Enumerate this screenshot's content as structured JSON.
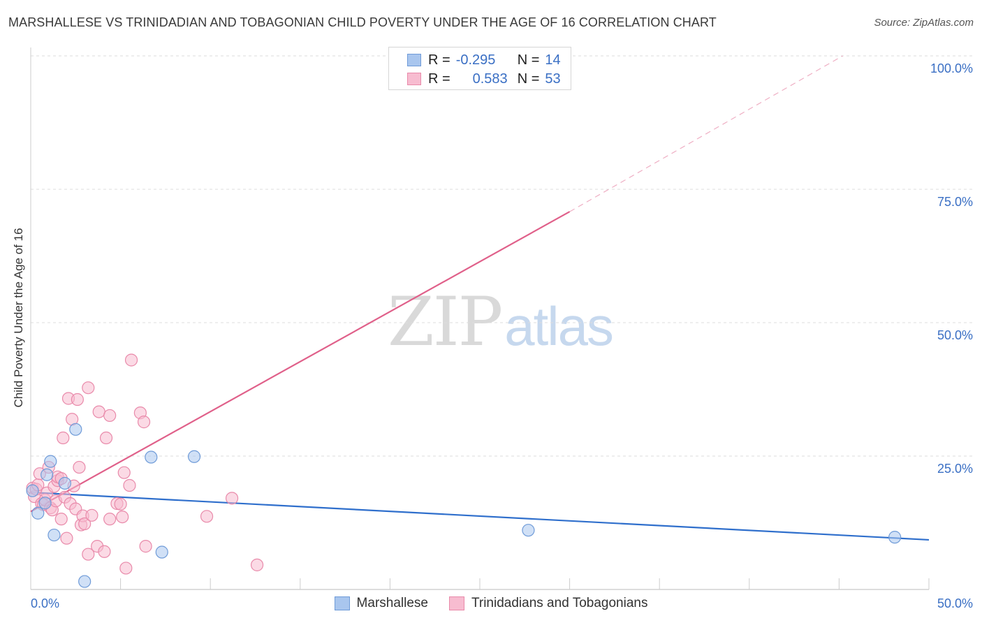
{
  "header": {
    "title": "MARSHALLESE VS TRINIDADIAN AND TOBAGONIAN CHILD POVERTY UNDER THE AGE OF 16 CORRELATION CHART",
    "source": "Source: ZipAtlas.com"
  },
  "watermark": {
    "zip": "ZIP",
    "atlas": "atlas"
  },
  "legend": {
    "rows": [
      {
        "r_label": "R =",
        "r_value": "-0.295",
        "n_label": "N =",
        "n_value": "14"
      },
      {
        "r_label": "R =",
        "r_value": "0.583",
        "n_label": "N =",
        "n_value": "53"
      }
    ]
  },
  "bottom_legend": [
    "Marshallese",
    "Trinidadians and Tobagonians"
  ],
  "colors": {
    "marshallese_fill": "#a9c6ee",
    "marshallese_stroke": "#6f9bd8",
    "marshallese_line": "#2f6fcc",
    "trini_fill": "#f7bcd0",
    "trini_stroke": "#e98aaa",
    "trini_line": "#e0608a",
    "axis_text": "#3a6fc4",
    "grid": "#dddddd"
  },
  "chart_data": {
    "type": "scatter",
    "title": "MARSHALLESE VS TRINIDADIAN AND TOBAGONIAN CHILD POVERTY UNDER THE AGE OF 16 CORRELATION CHART",
    "xlabel": "",
    "ylabel": "Child Poverty Under the Age of 16",
    "xlim": [
      0,
      50
    ],
    "ylim": [
      0,
      100
    ],
    "x_tick_labels": [
      "0.0%",
      "50.0%"
    ],
    "y_tick_labels": [
      "25.0%",
      "50.0%",
      "75.0%",
      "100.0%"
    ],
    "y_ticks": [
      25,
      50,
      75,
      100
    ],
    "legend_position": "top-center",
    "series": [
      {
        "name": "Marshallese",
        "r": -0.295,
        "n": 14,
        "points": [
          {
            "x": 0.1,
            "y": 18.5
          },
          {
            "x": 0.4,
            "y": 14.3
          },
          {
            "x": 0.8,
            "y": 16.2
          },
          {
            "x": 0.9,
            "y": 21.5
          },
          {
            "x": 1.1,
            "y": 24.0
          },
          {
            "x": 1.3,
            "y": 10.2
          },
          {
            "x": 1.9,
            "y": 19.9
          },
          {
            "x": 2.5,
            "y": 30.0
          },
          {
            "x": 3.0,
            "y": 1.5
          },
          {
            "x": 6.7,
            "y": 24.8
          },
          {
            "x": 7.3,
            "y": 7.0
          },
          {
            "x": 9.1,
            "y": 24.9
          },
          {
            "x": 27.7,
            "y": 11.1
          },
          {
            "x": 48.1,
            "y": 9.8
          }
        ],
        "trend": {
          "x": [
            0,
            50
          ],
          "y": [
            18.2,
            9.3
          ],
          "dashed_to": null
        }
      },
      {
        "name": "Trinidadians and Tobagonians",
        "r": 0.583,
        "n": 53,
        "points": [
          {
            "x": 0.1,
            "y": 19.0
          },
          {
            "x": 0.2,
            "y": 17.4
          },
          {
            "x": 0.3,
            "y": 18.8
          },
          {
            "x": 0.4,
            "y": 19.6
          },
          {
            "x": 0.5,
            "y": 21.7
          },
          {
            "x": 0.6,
            "y": 16.1
          },
          {
            "x": 0.7,
            "y": 15.9
          },
          {
            "x": 0.8,
            "y": 16.8
          },
          {
            "x": 0.9,
            "y": 18.1
          },
          {
            "x": 1.0,
            "y": 22.9
          },
          {
            "x": 1.1,
            "y": 15.3
          },
          {
            "x": 1.2,
            "y": 14.9
          },
          {
            "x": 1.3,
            "y": 19.3
          },
          {
            "x": 1.4,
            "y": 16.6
          },
          {
            "x": 1.5,
            "y": 20.4
          },
          {
            "x": 1.5,
            "y": 21.1
          },
          {
            "x": 1.7,
            "y": 20.8
          },
          {
            "x": 1.7,
            "y": 13.2
          },
          {
            "x": 1.8,
            "y": 28.4
          },
          {
            "x": 1.9,
            "y": 17.3
          },
          {
            "x": 2.0,
            "y": 9.6
          },
          {
            "x": 2.1,
            "y": 35.8
          },
          {
            "x": 2.2,
            "y": 16.1
          },
          {
            "x": 2.3,
            "y": 31.9
          },
          {
            "x": 2.4,
            "y": 19.4
          },
          {
            "x": 2.5,
            "y": 15.1
          },
          {
            "x": 2.6,
            "y": 35.6
          },
          {
            "x": 2.7,
            "y": 22.9
          },
          {
            "x": 2.8,
            "y": 12.1
          },
          {
            "x": 2.9,
            "y": 13.8
          },
          {
            "x": 3.0,
            "y": 12.3
          },
          {
            "x": 3.2,
            "y": 6.6
          },
          {
            "x": 3.2,
            "y": 37.8
          },
          {
            "x": 3.4,
            "y": 13.9
          },
          {
            "x": 3.7,
            "y": 8.1
          },
          {
            "x": 3.8,
            "y": 33.3
          },
          {
            "x": 4.1,
            "y": 7.1
          },
          {
            "x": 4.2,
            "y": 28.4
          },
          {
            "x": 4.4,
            "y": 32.6
          },
          {
            "x": 4.4,
            "y": 13.2
          },
          {
            "x": 4.8,
            "y": 16.1
          },
          {
            "x": 5.0,
            "y": 16.0
          },
          {
            "x": 5.1,
            "y": 13.6
          },
          {
            "x": 5.2,
            "y": 21.9
          },
          {
            "x": 5.3,
            "y": 4.0
          },
          {
            "x": 5.5,
            "y": 19.5
          },
          {
            "x": 5.6,
            "y": 43.0
          },
          {
            "x": 6.1,
            "y": 33.1
          },
          {
            "x": 6.3,
            "y": 31.4
          },
          {
            "x": 6.4,
            "y": 8.1
          },
          {
            "x": 9.8,
            "y": 13.7
          },
          {
            "x": 11.2,
            "y": 17.1
          },
          {
            "x": 12.6,
            "y": 4.6
          }
        ],
        "trend": {
          "x": [
            0,
            30
          ],
          "y": [
            14.6,
            70.8
          ],
          "dashed_to": {
            "x": 45.2,
            "y": 100
          }
        }
      }
    ]
  }
}
